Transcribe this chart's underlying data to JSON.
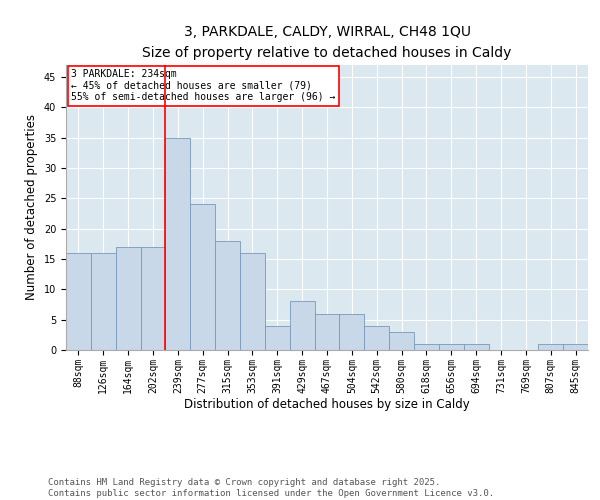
{
  "title1": "3, PARKDALE, CALDY, WIRRAL, CH48 1QU",
  "title2": "Size of property relative to detached houses in Caldy",
  "xlabel": "Distribution of detached houses by size in Caldy",
  "ylabel": "Number of detached properties",
  "categories": [
    "88sqm",
    "126sqm",
    "164sqm",
    "202sqm",
    "239sqm",
    "277sqm",
    "315sqm",
    "353sqm",
    "391sqm",
    "429sqm",
    "467sqm",
    "504sqm",
    "542sqm",
    "580sqm",
    "618sqm",
    "656sqm",
    "694sqm",
    "731sqm",
    "769sqm",
    "807sqm",
    "845sqm"
  ],
  "values": [
    16,
    16,
    17,
    17,
    35,
    24,
    18,
    16,
    4,
    8,
    6,
    6,
    4,
    3,
    1,
    1,
    1,
    0,
    0,
    1,
    1
  ],
  "bar_color": "#c8d8e8",
  "bar_edge_color": "#7799bb",
  "vline_x": 3.5,
  "vline_color": "red",
  "annotation_text": "3 PARKDALE: 234sqm\n← 45% of detached houses are smaller (79)\n55% of semi-detached houses are larger (96) →",
  "annotation_box_color": "white",
  "annotation_box_edge": "red",
  "ylim": [
    0,
    47
  ],
  "yticks": [
    0,
    5,
    10,
    15,
    20,
    25,
    30,
    35,
    40,
    45
  ],
  "bg_color": "#dce8f0",
  "footer": "Contains HM Land Registry data © Crown copyright and database right 2025.\nContains public sector information licensed under the Open Government Licence v3.0.",
  "title1_fontsize": 10,
  "title2_fontsize": 9,
  "axis_label_fontsize": 8.5,
  "tick_fontsize": 7,
  "annot_fontsize": 7,
  "footer_fontsize": 6.5
}
